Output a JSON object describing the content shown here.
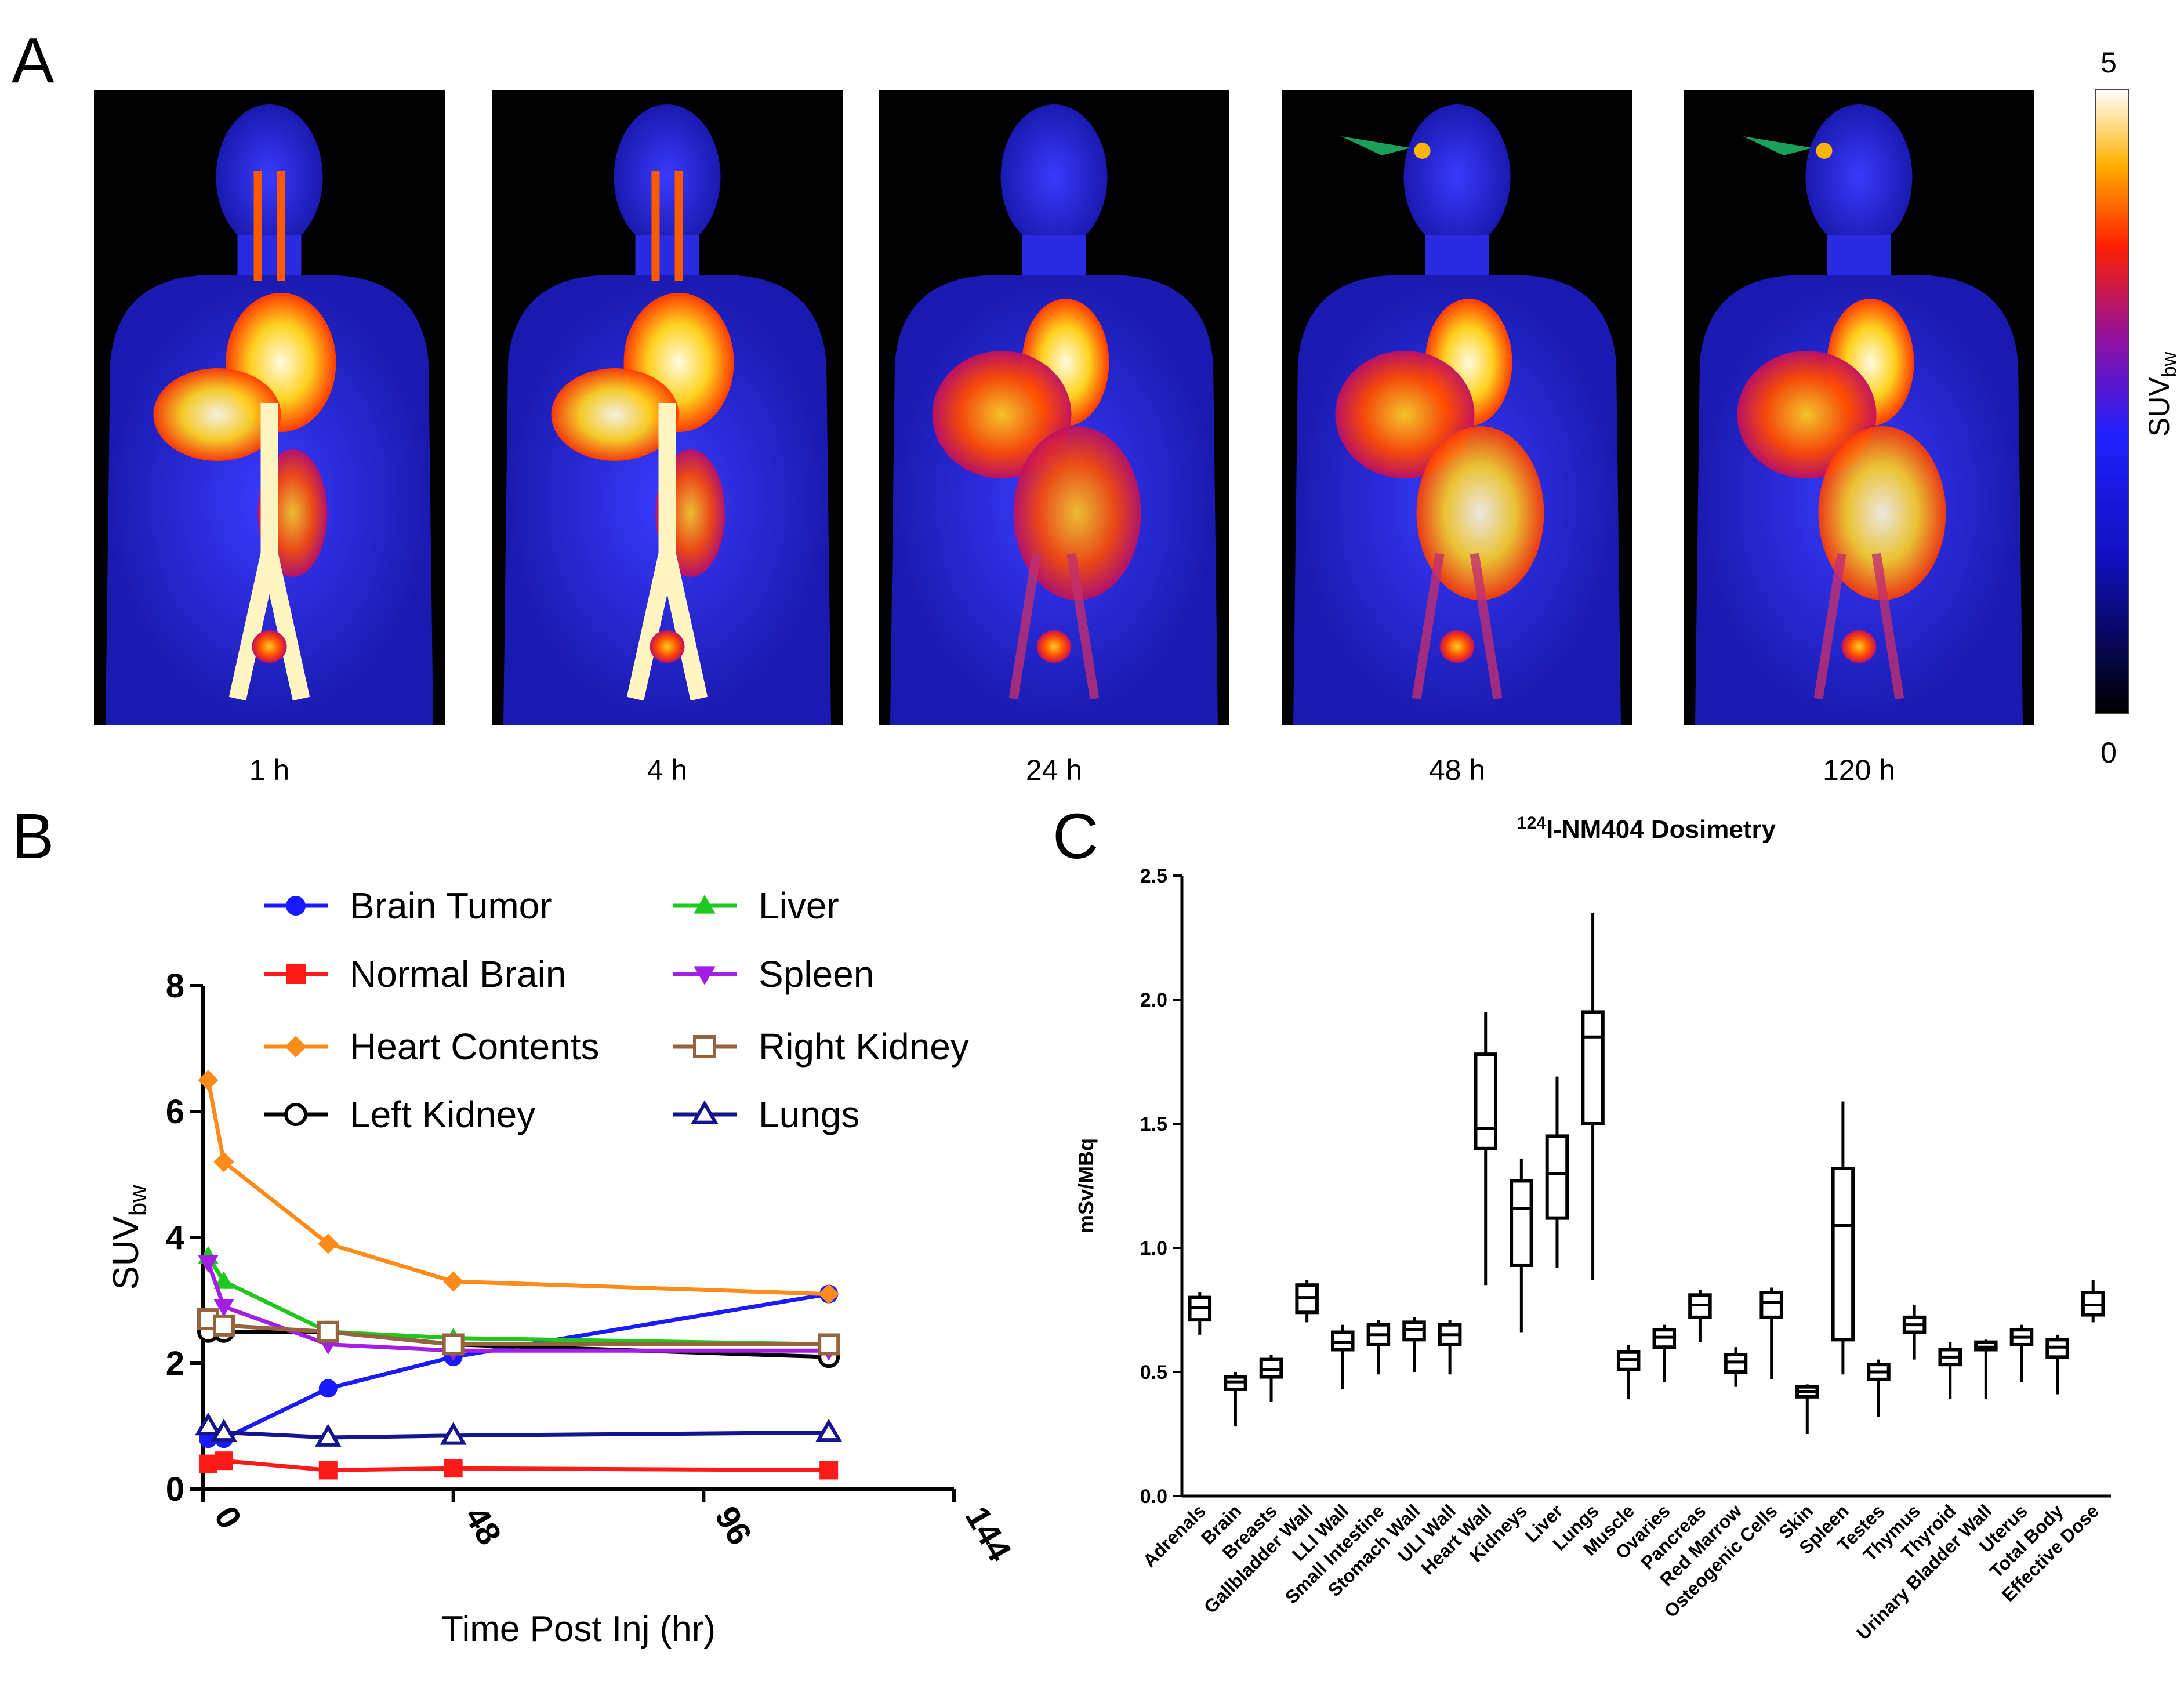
{
  "panels": {
    "a": {
      "letter": "A",
      "images": [
        {
          "label": "1 h",
          "description_name": "pet-1h"
        },
        {
          "label": "4 h",
          "description_name": "pet-4h"
        },
        {
          "label": "24 h",
          "description_name": "pet-24h"
        },
        {
          "label": "48 h",
          "description_name": "pet-48h"
        },
        {
          "label": "120 h",
          "description_name": "pet-120h"
        }
      ],
      "colorbar": {
        "max_label": "5",
        "min_label": "0",
        "title": "SUV",
        "title_sub": "bw"
      },
      "arrow_color": "#19a05a"
    },
    "b": {
      "letter": "B"
    },
    "c": {
      "letter": "C"
    }
  },
  "chart_data": [
    {
      "type": "line",
      "panel": "B",
      "xlabel": "Time Post Inj (hr)",
      "ylabel": "SUV",
      "ylabel_sub": "bw",
      "xlim": [
        0,
        144
      ],
      "ylim": [
        0,
        8
      ],
      "xticks": [
        "0",
        "48",
        "96",
        "144"
      ],
      "xtick_values": [
        0,
        48,
        96,
        144
      ],
      "yticks": [
        "0",
        "2",
        "4",
        "6",
        "8"
      ],
      "ytick_values": [
        0,
        2,
        4,
        6,
        8
      ],
      "legend": "top",
      "x": [
        1,
        4,
        24,
        48,
        120
      ],
      "series": [
        {
          "name": "Brain Tumor",
          "color": "#1a1aff",
          "marker": "circle",
          "values": [
            0.8,
            0.8,
            1.6,
            2.1,
            3.1
          ]
        },
        {
          "name": "Normal Brain",
          "color": "#ff1a1a",
          "marker": "square",
          "values": [
            0.4,
            0.45,
            0.3,
            0.33,
            0.3
          ]
        },
        {
          "name": "Heart Contents",
          "color": "#ff8c1a",
          "marker": "diamond",
          "values": [
            6.5,
            5.2,
            3.9,
            3.3,
            3.1
          ]
        },
        {
          "name": "Left Kidney",
          "color": "#000000",
          "marker": "circle-open",
          "values": [
            2.5,
            2.5,
            2.5,
            2.3,
            2.1
          ]
        },
        {
          "name": "Liver",
          "color": "#1ec81e",
          "marker": "triangle-up",
          "values": [
            3.7,
            3.3,
            2.5,
            2.4,
            2.3
          ]
        },
        {
          "name": "Spleen",
          "color": "#a51ee6",
          "marker": "triangle-down",
          "values": [
            3.6,
            2.9,
            2.3,
            2.2,
            2.2
          ]
        },
        {
          "name": "Right Kidney",
          "color": "#96643c",
          "marker": "square-open",
          "values": [
            2.7,
            2.6,
            2.5,
            2.3,
            2.3
          ]
        },
        {
          "name": "Lungs",
          "color": "#14148c",
          "marker": "triangle-open",
          "values": [
            1.0,
            0.9,
            0.82,
            0.85,
            0.9
          ]
        }
      ]
    },
    {
      "type": "box",
      "panel": "C",
      "title": "-NM404 Dosimetry",
      "title_sup": "124",
      "title_prefix": "I",
      "ylabel": "mSv/MBq",
      "ylim": [
        0,
        2.5
      ],
      "yticks": [
        "0.0",
        "0.5",
        "1.0",
        "1.5",
        "2.0",
        "2.5"
      ],
      "ytick_values": [
        0,
        0.5,
        1.0,
        1.5,
        2.0,
        2.5
      ],
      "categories": [
        "Adrenals",
        "Brain",
        "Breasts",
        "Gallbladder Wall",
        "LLI Wall",
        "Small Intestine",
        "Stomach Wall",
        "ULI Wall",
        "Heart Wall",
        "Kidneys",
        "Liver",
        "Lungs",
        "Muscle",
        "Ovaries",
        "Pancreas",
        "Red Marrow",
        "Osteogenic Cells",
        "Skin",
        "Spleen",
        "Testes",
        "Thymus",
        "Thyroid",
        "Urinary Bladder Wall",
        "Uterus",
        "Total Body",
        "Effective Dose"
      ],
      "boxes": [
        {
          "min": 0.65,
          "q1": 0.71,
          "median": 0.76,
          "q3": 0.8,
          "max": 0.82
        },
        {
          "min": 0.28,
          "q1": 0.43,
          "median": 0.46,
          "q3": 0.48,
          "max": 0.5
        },
        {
          "min": 0.38,
          "q1": 0.48,
          "median": 0.51,
          "q3": 0.55,
          "max": 0.57
        },
        {
          "min": 0.7,
          "q1": 0.74,
          "median": 0.8,
          "q3": 0.85,
          "max": 0.87
        },
        {
          "min": 0.43,
          "q1": 0.59,
          "median": 0.62,
          "q3": 0.66,
          "max": 0.69
        },
        {
          "min": 0.49,
          "q1": 0.61,
          "median": 0.65,
          "q3": 0.69,
          "max": 0.71
        },
        {
          "min": 0.5,
          "q1": 0.63,
          "median": 0.67,
          "q3": 0.7,
          "max": 0.72
        },
        {
          "min": 0.49,
          "q1": 0.61,
          "median": 0.65,
          "q3": 0.69,
          "max": 0.71
        },
        {
          "min": 0.85,
          "q1": 1.4,
          "median": 1.48,
          "q3": 1.78,
          "max": 1.95
        },
        {
          "min": 0.66,
          "q1": 0.93,
          "median": 1.16,
          "q3": 1.27,
          "max": 1.36
        },
        {
          "min": 0.92,
          "q1": 1.12,
          "median": 1.3,
          "q3": 1.45,
          "max": 1.69
        },
        {
          "min": 0.87,
          "q1": 1.5,
          "median": 1.85,
          "q3": 1.95,
          "max": 2.35
        },
        {
          "min": 0.39,
          "q1": 0.51,
          "median": 0.55,
          "q3": 0.58,
          "max": 0.61
        },
        {
          "min": 0.46,
          "q1": 0.6,
          "median": 0.64,
          "q3": 0.67,
          "max": 0.69
        },
        {
          "min": 0.62,
          "q1": 0.72,
          "median": 0.77,
          "q3": 0.81,
          "max": 0.83
        },
        {
          "min": 0.44,
          "q1": 0.5,
          "median": 0.54,
          "q3": 0.57,
          "max": 0.6
        },
        {
          "min": 0.47,
          "q1": 0.72,
          "median": 0.78,
          "q3": 0.82,
          "max": 0.84
        },
        {
          "min": 0.25,
          "q1": 0.4,
          "median": 0.42,
          "q3": 0.44,
          "max": 0.45
        },
        {
          "min": 0.49,
          "q1": 0.63,
          "median": 1.09,
          "q3": 1.32,
          "max": 1.59
        },
        {
          "min": 0.32,
          "q1": 0.47,
          "median": 0.5,
          "q3": 0.53,
          "max": 0.55
        },
        {
          "min": 0.55,
          "q1": 0.66,
          "median": 0.69,
          "q3": 0.72,
          "max": 0.77
        },
        {
          "min": 0.39,
          "q1": 0.53,
          "median": 0.56,
          "q3": 0.59,
          "max": 0.62
        },
        {
          "min": 0.39,
          "q1": 0.59,
          "median": 0.6,
          "q3": 0.62,
          "max": 0.63
        },
        {
          "min": 0.46,
          "q1": 0.61,
          "median": 0.64,
          "q3": 0.67,
          "max": 0.69
        },
        {
          "min": 0.41,
          "q1": 0.56,
          "median": 0.6,
          "q3": 0.63,
          "max": 0.65
        },
        {
          "min": 0.7,
          "q1": 0.73,
          "median": 0.77,
          "q3": 0.82,
          "max": 0.87
        }
      ]
    }
  ]
}
